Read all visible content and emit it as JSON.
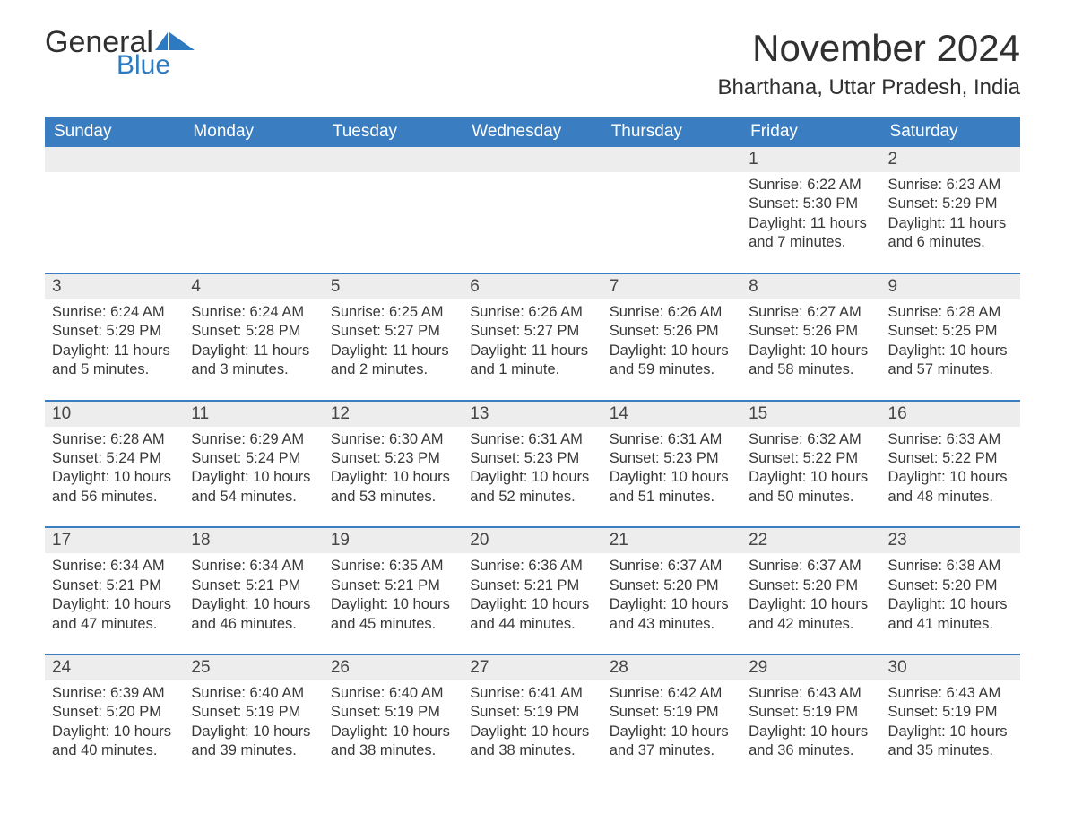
{
  "brand": {
    "word1": "General",
    "word2": "Blue",
    "flag_color": "#2e7ac0"
  },
  "title": {
    "month": "November 2024",
    "location": "Bharthana, Uttar Pradesh, India"
  },
  "colors": {
    "header_bg": "#3a7ec1",
    "header_text": "#ffffff",
    "daynum_bg": "#ededed",
    "row_border": "#3a7ec1",
    "body_text": "#353535",
    "page_bg": "#ffffff"
  },
  "weekdays": [
    "Sunday",
    "Monday",
    "Tuesday",
    "Wednesday",
    "Thursday",
    "Friday",
    "Saturday"
  ],
  "weeks": [
    [
      null,
      null,
      null,
      null,
      null,
      {
        "n": "1",
        "sr": "Sunrise: 6:22 AM",
        "ss": "Sunset: 5:30 PM",
        "d1": "Daylight: 11 hours",
        "d2": "and 7 minutes."
      },
      {
        "n": "2",
        "sr": "Sunrise: 6:23 AM",
        "ss": "Sunset: 5:29 PM",
        "d1": "Daylight: 11 hours",
        "d2": "and 6 minutes."
      }
    ],
    [
      {
        "n": "3",
        "sr": "Sunrise: 6:24 AM",
        "ss": "Sunset: 5:29 PM",
        "d1": "Daylight: 11 hours",
        "d2": "and 5 minutes."
      },
      {
        "n": "4",
        "sr": "Sunrise: 6:24 AM",
        "ss": "Sunset: 5:28 PM",
        "d1": "Daylight: 11 hours",
        "d2": "and 3 minutes."
      },
      {
        "n": "5",
        "sr": "Sunrise: 6:25 AM",
        "ss": "Sunset: 5:27 PM",
        "d1": "Daylight: 11 hours",
        "d2": "and 2 minutes."
      },
      {
        "n": "6",
        "sr": "Sunrise: 6:26 AM",
        "ss": "Sunset: 5:27 PM",
        "d1": "Daylight: 11 hours",
        "d2": "and 1 minute."
      },
      {
        "n": "7",
        "sr": "Sunrise: 6:26 AM",
        "ss": "Sunset: 5:26 PM",
        "d1": "Daylight: 10 hours",
        "d2": "and 59 minutes."
      },
      {
        "n": "8",
        "sr": "Sunrise: 6:27 AM",
        "ss": "Sunset: 5:26 PM",
        "d1": "Daylight: 10 hours",
        "d2": "and 58 minutes."
      },
      {
        "n": "9",
        "sr": "Sunrise: 6:28 AM",
        "ss": "Sunset: 5:25 PM",
        "d1": "Daylight: 10 hours",
        "d2": "and 57 minutes."
      }
    ],
    [
      {
        "n": "10",
        "sr": "Sunrise: 6:28 AM",
        "ss": "Sunset: 5:24 PM",
        "d1": "Daylight: 10 hours",
        "d2": "and 56 minutes."
      },
      {
        "n": "11",
        "sr": "Sunrise: 6:29 AM",
        "ss": "Sunset: 5:24 PM",
        "d1": "Daylight: 10 hours",
        "d2": "and 54 minutes."
      },
      {
        "n": "12",
        "sr": "Sunrise: 6:30 AM",
        "ss": "Sunset: 5:23 PM",
        "d1": "Daylight: 10 hours",
        "d2": "and 53 minutes."
      },
      {
        "n": "13",
        "sr": "Sunrise: 6:31 AM",
        "ss": "Sunset: 5:23 PM",
        "d1": "Daylight: 10 hours",
        "d2": "and 52 minutes."
      },
      {
        "n": "14",
        "sr": "Sunrise: 6:31 AM",
        "ss": "Sunset: 5:23 PM",
        "d1": "Daylight: 10 hours",
        "d2": "and 51 minutes."
      },
      {
        "n": "15",
        "sr": "Sunrise: 6:32 AM",
        "ss": "Sunset: 5:22 PM",
        "d1": "Daylight: 10 hours",
        "d2": "and 50 minutes."
      },
      {
        "n": "16",
        "sr": "Sunrise: 6:33 AM",
        "ss": "Sunset: 5:22 PM",
        "d1": "Daylight: 10 hours",
        "d2": "and 48 minutes."
      }
    ],
    [
      {
        "n": "17",
        "sr": "Sunrise: 6:34 AM",
        "ss": "Sunset: 5:21 PM",
        "d1": "Daylight: 10 hours",
        "d2": "and 47 minutes."
      },
      {
        "n": "18",
        "sr": "Sunrise: 6:34 AM",
        "ss": "Sunset: 5:21 PM",
        "d1": "Daylight: 10 hours",
        "d2": "and 46 minutes."
      },
      {
        "n": "19",
        "sr": "Sunrise: 6:35 AM",
        "ss": "Sunset: 5:21 PM",
        "d1": "Daylight: 10 hours",
        "d2": "and 45 minutes."
      },
      {
        "n": "20",
        "sr": "Sunrise: 6:36 AM",
        "ss": "Sunset: 5:21 PM",
        "d1": "Daylight: 10 hours",
        "d2": "and 44 minutes."
      },
      {
        "n": "21",
        "sr": "Sunrise: 6:37 AM",
        "ss": "Sunset: 5:20 PM",
        "d1": "Daylight: 10 hours",
        "d2": "and 43 minutes."
      },
      {
        "n": "22",
        "sr": "Sunrise: 6:37 AM",
        "ss": "Sunset: 5:20 PM",
        "d1": "Daylight: 10 hours",
        "d2": "and 42 minutes."
      },
      {
        "n": "23",
        "sr": "Sunrise: 6:38 AM",
        "ss": "Sunset: 5:20 PM",
        "d1": "Daylight: 10 hours",
        "d2": "and 41 minutes."
      }
    ],
    [
      {
        "n": "24",
        "sr": "Sunrise: 6:39 AM",
        "ss": "Sunset: 5:20 PM",
        "d1": "Daylight: 10 hours",
        "d2": "and 40 minutes."
      },
      {
        "n": "25",
        "sr": "Sunrise: 6:40 AM",
        "ss": "Sunset: 5:19 PM",
        "d1": "Daylight: 10 hours",
        "d2": "and 39 minutes."
      },
      {
        "n": "26",
        "sr": "Sunrise: 6:40 AM",
        "ss": "Sunset: 5:19 PM",
        "d1": "Daylight: 10 hours",
        "d2": "and 38 minutes."
      },
      {
        "n": "27",
        "sr": "Sunrise: 6:41 AM",
        "ss": "Sunset: 5:19 PM",
        "d1": "Daylight: 10 hours",
        "d2": "and 38 minutes."
      },
      {
        "n": "28",
        "sr": "Sunrise: 6:42 AM",
        "ss": "Sunset: 5:19 PM",
        "d1": "Daylight: 10 hours",
        "d2": "and 37 minutes."
      },
      {
        "n": "29",
        "sr": "Sunrise: 6:43 AM",
        "ss": "Sunset: 5:19 PM",
        "d1": "Daylight: 10 hours",
        "d2": "and 36 minutes."
      },
      {
        "n": "30",
        "sr": "Sunrise: 6:43 AM",
        "ss": "Sunset: 5:19 PM",
        "d1": "Daylight: 10 hours",
        "d2": "and 35 minutes."
      }
    ]
  ]
}
